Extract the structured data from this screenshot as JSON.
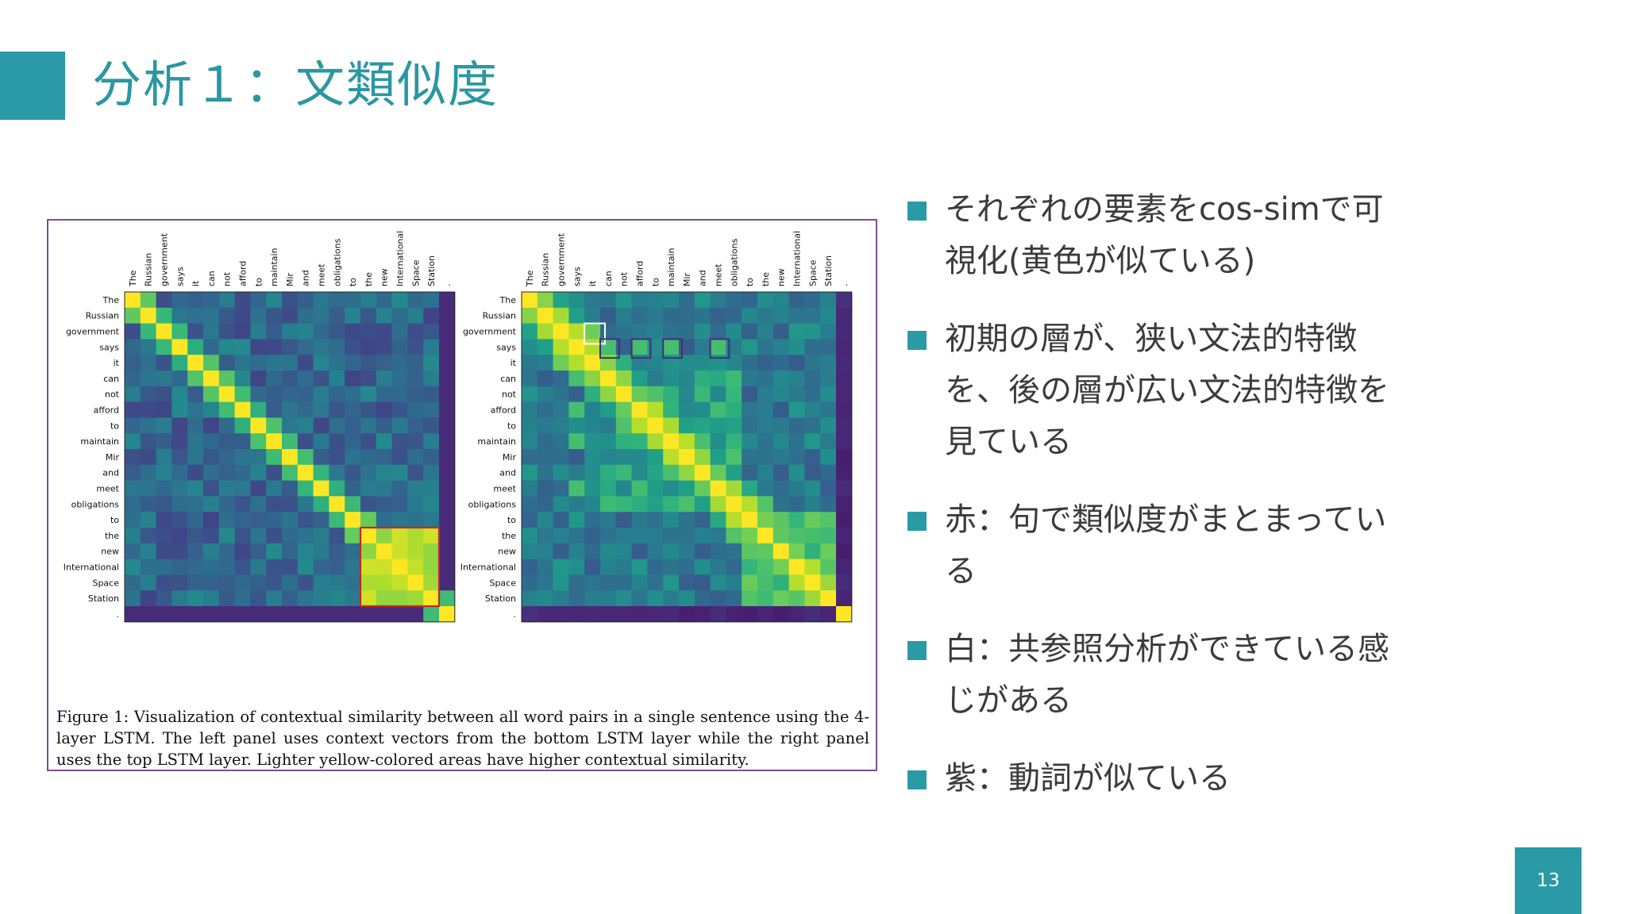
{
  "slide": {
    "title": "分析１：文類似度",
    "page_number": "13",
    "accent_color": "#2a9aa6"
  },
  "figure": {
    "caption": "Figure 1:   Visualization of contextual similarity between all word pairs in a single sentence using the 4-layer LSTM. The left panel uses context vectors from the bottom LSTM layer while the right panel uses the top LSTM layer. Lighter yellow-colored areas have higher contextual similarity.",
    "tokens": [
      "The",
      "Russian",
      "government",
      "says",
      "it",
      "can",
      "not",
      "afford",
      "to",
      "maintain",
      "Mir",
      "and",
      "meet",
      "obligations",
      "to",
      "the",
      "new",
      "International",
      "Space",
      "Station",
      "."
    ],
    "colormap": "viridis",
    "panels": [
      {
        "name": "bottom-layer",
        "phrase_highlight": {
          "color": "#c0282d",
          "from": 15,
          "to": 19
        }
      },
      {
        "name": "top-layer",
        "coref_highlight": {
          "color": "#ffffff",
          "row": 2,
          "col": 4
        },
        "verb_highlights": {
          "color": "#4b2a7a",
          "row": 3,
          "cols": [
            5,
            7,
            9,
            12
          ]
        }
      }
    ]
  },
  "bullets": [
    {
      "text": "それぞれの要素をcos-simで可視化(黄色が似ている)"
    },
    {
      "text": "初期の層が、狭い文法的特徴を、後の層が広い文法的特徴を見ている"
    },
    {
      "text": "赤：句で類似度がまとまっている"
    },
    {
      "text": "白：共参照分析ができている感じがある"
    },
    {
      "text": "紫：動詞が似ている"
    }
  ]
}
